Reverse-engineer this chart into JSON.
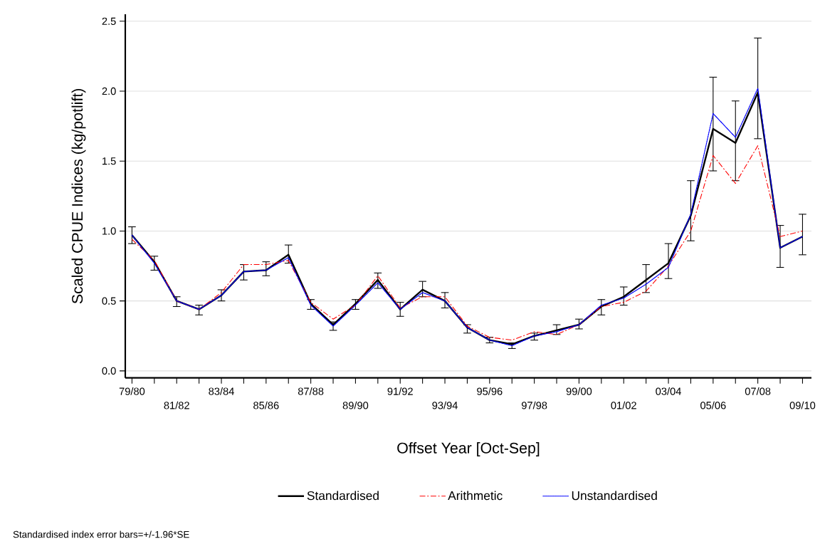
{
  "chart_data": {
    "type": "line",
    "xlabel": "Offset Year [Oct-Sep]",
    "ylabel": "Scaled CPUE Indices (kg/potlift)",
    "categories": [
      "79/80",
      null,
      "81/82",
      null,
      "83/84",
      null,
      "85/86",
      null,
      "87/88",
      null,
      "89/90",
      null,
      "91/92",
      null,
      "93/94",
      null,
      "95/96",
      null,
      "97/98",
      null,
      "99/00",
      null,
      "01/02",
      null,
      "03/04",
      null,
      "05/06",
      null,
      "07/08",
      null,
      "09/10"
    ],
    "series": [
      {
        "name": "Standardised",
        "color": "#000000",
        "line_style": "solid",
        "values": [
          0.97,
          0.78,
          0.5,
          0.44,
          0.54,
          0.71,
          0.72,
          0.83,
          0.48,
          0.33,
          0.48,
          0.65,
          0.44,
          0.58,
          0.5,
          0.31,
          0.22,
          0.19,
          0.25,
          0.29,
          0.33,
          0.46,
          0.53,
          0.65,
          0.77,
          1.11,
          1.73,
          1.63,
          1.99,
          0.88,
          0.96
        ],
        "errors": [
          [
            0.91,
            1.03
          ],
          [
            0.72,
            0.82
          ],
          [
            0.46,
            0.53
          ],
          [
            0.4,
            0.47
          ],
          [
            0.5,
            0.58
          ],
          [
            0.65,
            0.76
          ],
          [
            0.68,
            0.78
          ],
          [
            0.77,
            0.9
          ],
          [
            0.44,
            0.51
          ],
          [
            0.29,
            0.35
          ],
          [
            0.44,
            0.51
          ],
          [
            0.59,
            0.7
          ],
          [
            0.39,
            0.49
          ],
          [
            0.53,
            0.64
          ],
          [
            0.45,
            0.56
          ],
          [
            0.27,
            0.33
          ],
          [
            0.2,
            0.24
          ],
          [
            0.16,
            0.2
          ],
          [
            0.22,
            0.27
          ],
          [
            0.26,
            0.33
          ],
          [
            0.3,
            0.37
          ],
          [
            0.4,
            0.51
          ],
          [
            0.47,
            0.6
          ],
          [
            0.56,
            0.76
          ],
          [
            0.66,
            0.91
          ],
          [
            0.93,
            1.36
          ],
          [
            1.43,
            2.1
          ],
          [
            1.36,
            1.93
          ],
          [
            1.66,
            2.38
          ],
          [
            0.74,
            1.04
          ],
          [
            0.83,
            1.12
          ]
        ]
      },
      {
        "name": "Arithmetic",
        "color": "#ff0000",
        "line_style": "dashdot",
        "values": [
          0.94,
          0.79,
          0.5,
          0.44,
          0.56,
          0.76,
          0.76,
          0.79,
          0.49,
          0.37,
          0.47,
          0.68,
          0.45,
          0.53,
          0.53,
          0.32,
          0.24,
          0.22,
          0.28,
          0.26,
          0.33,
          0.46,
          0.49,
          0.57,
          0.75,
          1.0,
          1.54,
          1.34,
          1.61,
          0.96,
          1.0
        ]
      },
      {
        "name": "Unstandardised",
        "color": "#0000ff",
        "line_style": "dotted",
        "values": [
          0.97,
          0.77,
          0.5,
          0.44,
          0.54,
          0.71,
          0.72,
          0.81,
          0.47,
          0.32,
          0.47,
          0.63,
          0.44,
          0.56,
          0.5,
          0.31,
          0.22,
          0.18,
          0.25,
          0.28,
          0.33,
          0.47,
          0.52,
          0.62,
          0.74,
          1.12,
          1.84,
          1.67,
          2.02,
          0.88,
          0.96
        ]
      }
    ],
    "ylim": [
      -0.05,
      2.55
    ],
    "yticks": [
      {
        "value": 0,
        "label": "0.0"
      },
      {
        "value": 0.5,
        "label": "0.5"
      },
      {
        "value": 1,
        "label": "1.0"
      },
      {
        "value": 1.5,
        "label": "1.5"
      },
      {
        "value": 2,
        "label": "2.0"
      },
      {
        "value": 2.5,
        "label": "2.5"
      }
    ],
    "grid": "y",
    "legend": "bottom",
    "marker": "none",
    "annotations": [
      "Standardised index error bars=+/-1.96*SE"
    ]
  }
}
